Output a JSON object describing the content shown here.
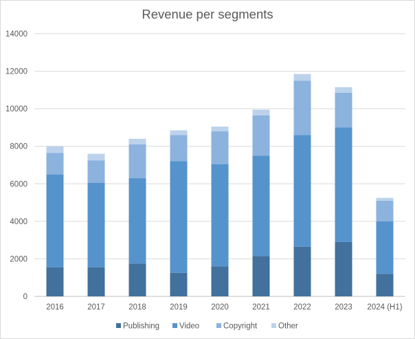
{
  "chart_data": {
    "type": "bar",
    "stacked": true,
    "title": "Revenue per segments",
    "xlabel": "",
    "ylabel": "",
    "ylim": [
      0,
      14000
    ],
    "yticks": [
      0,
      2000,
      4000,
      6000,
      8000,
      10000,
      12000,
      14000
    ],
    "grid": true,
    "legend_position": "bottom",
    "categories": [
      "2016",
      "2017",
      "2018",
      "2019",
      "2020",
      "2021",
      "2022",
      "2023",
      "2024 (H1)"
    ],
    "series": [
      {
        "name": "Publishing",
        "color": "#41719c",
        "values": [
          1550,
          1550,
          1750,
          1250,
          1600,
          2150,
          2650,
          2900,
          1200
        ]
      },
      {
        "name": "Video",
        "color": "#5593cc",
        "values": [
          4950,
          4500,
          4550,
          5950,
          5450,
          5350,
          5950,
          6100,
          2800
        ]
      },
      {
        "name": "Copyright",
        "color": "#8cb2de",
        "values": [
          1150,
          1200,
          1800,
          1400,
          1750,
          2150,
          2900,
          1850,
          1100
        ]
      },
      {
        "name": "Other",
        "color": "#bcd2ec",
        "values": [
          350,
          350,
          300,
          250,
          250,
          300,
          350,
          300,
          150
        ]
      }
    ]
  }
}
